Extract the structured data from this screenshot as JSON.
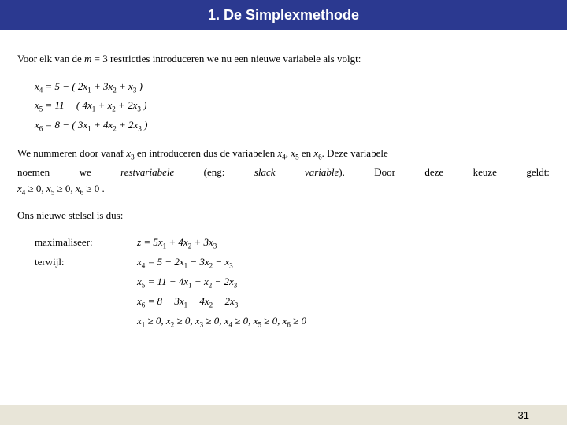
{
  "header": {
    "title": "1. De Simplexmethode"
  },
  "p1": {
    "pre": "Voor elk van de ",
    "mvar": "m",
    "meq": " = 3 restricties introduceren we nu een nieuwe variabele als volgt:"
  },
  "eq": {
    "l1_lhs": "x",
    "l1_sub": "4",
    "l1_rhs": " = 5 − ( 2",
    "l1_a": "x",
    "l1_as": "1",
    "l1_b": " + 3",
    "l1_c": "x",
    "l1_cs": "2",
    "l1_d": " + ",
    "l1_e": "x",
    "l1_es": "3",
    "l1_f": " )",
    "l2_lhs": "x",
    "l2_sub": "5",
    "l2_rhs": " = 11 − ( 4",
    "l2_a": "x",
    "l2_as": "1",
    "l2_b": " + ",
    "l2_c": "x",
    "l2_cs": "2",
    "l2_d": " + 2",
    "l2_e": "x",
    "l2_es": "3",
    "l2_f": " )",
    "l3_lhs": "x",
    "l3_sub": "6",
    "l3_rhs": " = 8 − ( 3",
    "l3_a": "x",
    "l3_as": "1",
    "l3_b": " + 4",
    "l3_c": "x",
    "l3_cs": "2",
    "l3_d": " + 2",
    "l3_e": "x",
    "l3_es": "3",
    "l3_f": " )"
  },
  "p2": {
    "line1_a": "We nummeren door vanaf ",
    "line1_x": "x",
    "line1_xs": "3",
    "line1_b": " en introduceren dus de variabelen ",
    "line1_x4": "x",
    "line1_x4s": "4",
    "line1_c": ", ",
    "line1_x5": "x",
    "line1_x5s": "5",
    "line1_d": " en ",
    "line1_x6": "x",
    "line1_x6s": "6",
    "line1_e": ". Deze variabele",
    "w1": "noemen",
    "w2": "we",
    "w3": "restvariabele",
    "w4": "(eng:",
    "w5": "slack",
    "w6": "variable",
    "w6b": ").",
    "w7": "Door",
    "w8": "deze",
    "w9": "keuze",
    "w10": "geldt:"
  },
  "cons": {
    "a": "x",
    "as": "4",
    "ageq": " ≥ 0, ",
    "b": "x",
    "bs": "5",
    "bgeq": " ≥ 0, ",
    "c": "x",
    "cs": "6",
    "cgeq": " ≥ 0 ."
  },
  "p3": {
    "text": "Ons nieuwe stelsel is dus:"
  },
  "sys": {
    "lbl_max": "maximaliseer:",
    "lbl_sub": "terwijl:",
    "obj_z": "z",
    "obj_eq": " = 5",
    "obj_x1": "x",
    "obj_x1s": "1",
    "obj_p1": " + 4",
    "obj_x2": "x",
    "obj_x2s": "2",
    "obj_p2": " + 3",
    "obj_x3": "x",
    "obj_x3s": "3",
    "c1_l": "x",
    "c1_ls": "4",
    "c1_eq": " = 5 − 2",
    "c1_a": "x",
    "c1_as": "1",
    "c1_b": " − 3",
    "c1_c": "x",
    "c1_cs": "2",
    "c1_d": " − ",
    "c1_e": "x",
    "c1_es": "3",
    "c2_l": "x",
    "c2_ls": "5",
    "c2_eq": " = 11 − 4",
    "c2_a": "x",
    "c2_as": "1",
    "c2_b": " − ",
    "c2_c": "x",
    "c2_cs": "2",
    "c2_d": " − 2",
    "c2_e": "x",
    "c2_es": "3",
    "c3_l": "x",
    "c3_ls": "6",
    "c3_eq": " = 8 − 3",
    "c3_a": "x",
    "c3_as": "1",
    "c3_b": " − 4",
    "c3_c": "x",
    "c3_cs": "2",
    "c3_d": " − 2",
    "c3_e": "x",
    "c3_es": "3",
    "nn": {
      "x1": "x",
      "x1s": "1",
      "g1": " ≥ 0, ",
      "x2": "x",
      "x2s": "2",
      "g2": " ≥ 0, ",
      "x3": "x",
      "x3s": "3",
      "g3": " ≥ 0, ",
      "x4": "x",
      "x4s": "4",
      "g4": " ≥ 0, ",
      "x5": "x",
      "x5s": "5",
      "g5": " ≥ 0, ",
      "x6": "x",
      "x6s": "6",
      "g6": " ≥ 0"
    }
  },
  "footer": {
    "page": "31"
  },
  "colors": {
    "header_bg": "#2b3990",
    "header_text": "#ffffff",
    "body_bg": "#ffffff",
    "footer_bg": "#e8e5d8",
    "text": "#000000"
  }
}
